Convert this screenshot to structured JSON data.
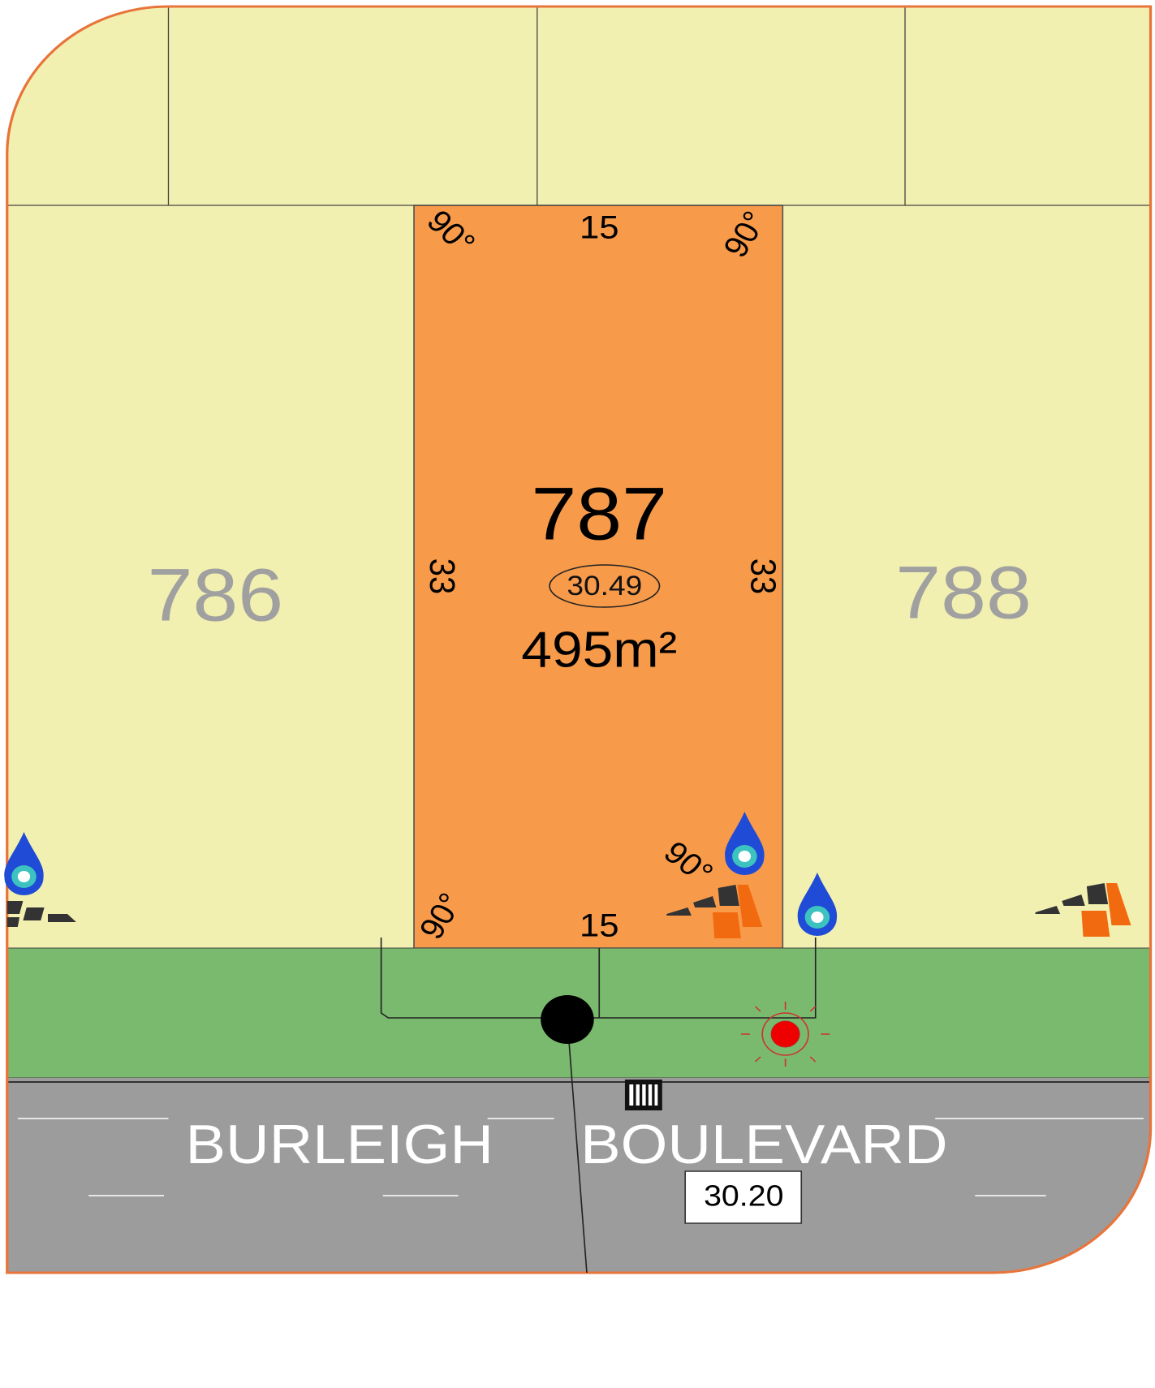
{
  "lots": [
    {
      "number": "786"
    },
    {
      "number": "787",
      "level": "30.49",
      "area": "495m²",
      "frontage": "15",
      "rear": "15",
      "left_depth": "33",
      "right_depth": "33",
      "angles": [
        "90°",
        "90°",
        "90°",
        "90°"
      ]
    },
    {
      "number": "788"
    }
  ],
  "street": {
    "name": [
      "BURLEIGH",
      "BOULEVARD"
    ],
    "level": "30.20"
  }
}
